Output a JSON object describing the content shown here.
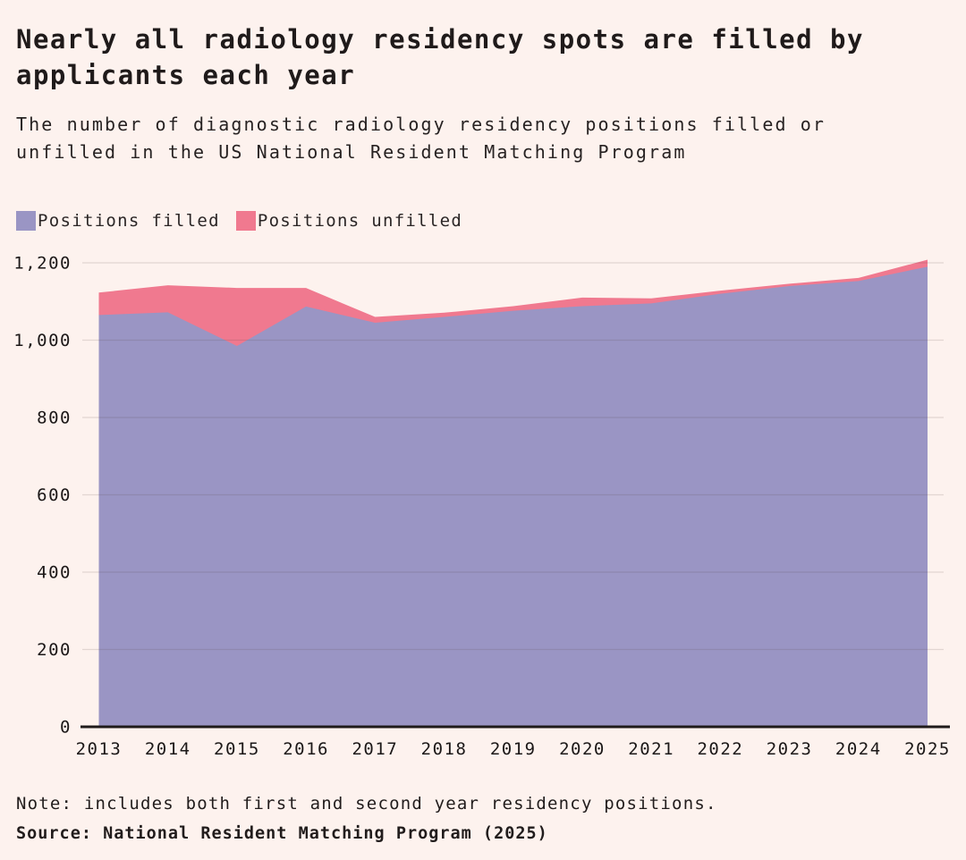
{
  "header": {
    "title": "Nearly all radiology residency spots are filled by applicants each year",
    "subtitle": "The number of diagnostic radiology residency positions filled or unfilled in the US National Resident Matching Program"
  },
  "legend": {
    "items": [
      {
        "label": "Positions filled",
        "color": "#9a95c4"
      },
      {
        "label": "Positions unfilled",
        "color": "#f0798f"
      }
    ]
  },
  "chart_data": {
    "type": "area",
    "stacked": true,
    "title": "Nearly all radiology residency spots are filled by applicants each year",
    "subtitle": "The number of diagnostic radiology residency positions filled or unfilled in the US National Resident Matching Program",
    "categories": [
      "2013",
      "2014",
      "2015",
      "2016",
      "2017",
      "2018",
      "2019",
      "2020",
      "2021",
      "2022",
      "2023",
      "2024",
      "2025"
    ],
    "series": [
      {
        "name": "Positions filled",
        "color": "#9a95c4",
        "values": [
          1065,
          1072,
          985,
          1087,
          1045,
          1060,
          1076,
          1088,
          1095,
          1120,
          1140,
          1153,
          1190
        ]
      },
      {
        "name": "Positions unfilled",
        "color": "#f0798f",
        "values": [
          58,
          70,
          150,
          48,
          15,
          11,
          12,
          22,
          13,
          8,
          6,
          8,
          18
        ]
      }
    ],
    "xlabel": "",
    "ylabel": "",
    "ylim": [
      0,
      1200
    ],
    "yticks": [
      {
        "value": 0,
        "label": "0"
      },
      {
        "value": 200,
        "label": "200"
      },
      {
        "value": 400,
        "label": "400"
      },
      {
        "value": 600,
        "label": "600"
      },
      {
        "value": 800,
        "label": "800"
      },
      {
        "value": 1000,
        "label": "1,000"
      },
      {
        "value": 1200,
        "label": "1,200"
      }
    ],
    "grid": true,
    "legend_position": "top-left"
  },
  "footer": {
    "note": "Note: includes both first and second year residency positions.",
    "source": "Source: National Resident Matching Program (2025)"
  },
  "colors": {
    "background": "#fdf2ee",
    "title_text": "#1f1a1a",
    "axis_line": "#1f1b1b",
    "gridline": "#ddd6d3",
    "filled_area": "#9a95c4",
    "unfilled_area": "#f0798f"
  }
}
